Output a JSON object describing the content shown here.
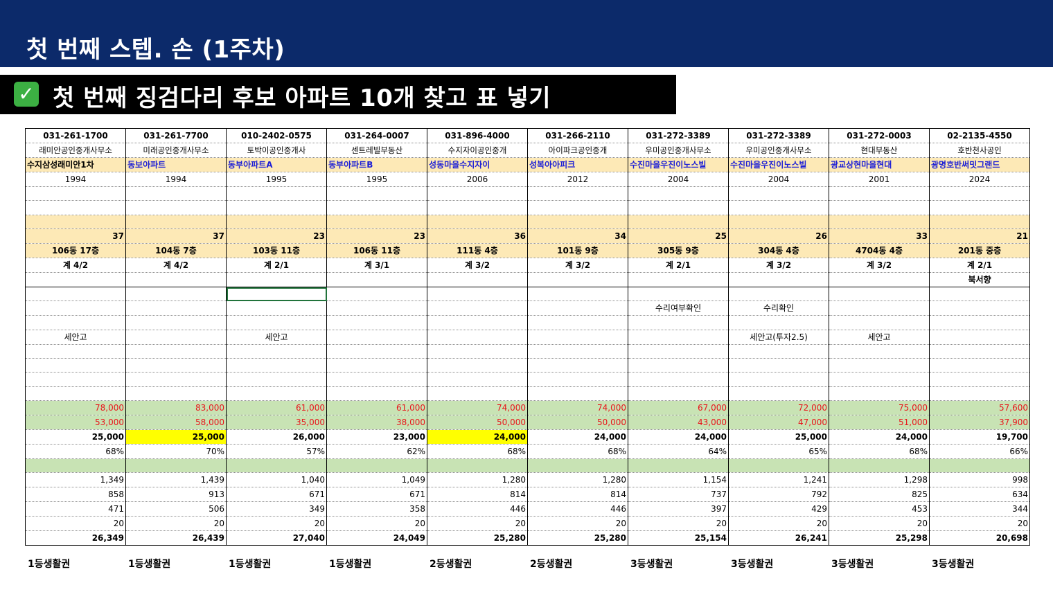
{
  "header": {
    "title": "첫 번째 스텝. 손 (1주차)"
  },
  "subheader": {
    "check": "✓",
    "title": "첫 번째 징검다리 후보 아파트 10개 찾고 표 넣기"
  },
  "columns": [
    {
      "phone": "031-261-1700",
      "office": "래미안공인중개사무소",
      "apt": "수지삼성래미안1차",
      "year": "1994",
      "num": "37",
      "unit": "106동 17층",
      "room": "계 4/2",
      "dir": "",
      "note1": "",
      "note2": "세안고",
      "price1": "78,000",
      "price2": "53,000",
      "gap": "25,000",
      "ratio": "68%",
      "v1": "1,349",
      "v2": "858",
      "v3": "471",
      "v4": "20",
      "total": "26,349",
      "grade": "1등생활권"
    },
    {
      "phone": "031-261-7700",
      "office": "미래공인중개사무소",
      "apt": "동보아파트",
      "year": "1994",
      "num": "37",
      "unit": "104동 7층",
      "room": "계 4/2",
      "dir": "",
      "note1": "",
      "note2": "",
      "price1": "83,000",
      "price2": "58,000",
      "gap": "25,000",
      "ratio": "70%",
      "v1": "1,439",
      "v2": "913",
      "v3": "506",
      "v4": "20",
      "total": "26,439",
      "grade": "1등생활권"
    },
    {
      "phone": "010-2402-0575",
      "office": "토박이공인중개사",
      "apt": "동부아파트A",
      "year": "1995",
      "num": "23",
      "unit": "103동 11층",
      "room": "계 2/1",
      "dir": "",
      "note1": "",
      "note2": "세안고",
      "price1": "61,000",
      "price2": "35,000",
      "gap": "26,000",
      "ratio": "57%",
      "v1": "1,040",
      "v2": "671",
      "v3": "349",
      "v4": "20",
      "total": "27,040",
      "grade": "1등생활권"
    },
    {
      "phone": "031-264-0007",
      "office": "센트레빌부동산",
      "apt": "동부아파트B",
      "year": "1995",
      "num": "23",
      "unit": "106동 11층",
      "room": "계 3/1",
      "dir": "",
      "note1": "",
      "note2": "",
      "price1": "61,000",
      "price2": "38,000",
      "gap": "23,000",
      "ratio": "62%",
      "v1": "1,049",
      "v2": "671",
      "v3": "358",
      "v4": "20",
      "total": "24,049",
      "grade": "1등생활권"
    },
    {
      "phone": "031-896-4000",
      "office": "수지자이공인중개",
      "apt": "성동마을수지자이",
      "year": "2006",
      "num": "36",
      "unit": "111동 4층",
      "room": "계 3/2",
      "dir": "",
      "note1": "",
      "note2": "",
      "price1": "74,000",
      "price2": "50,000",
      "gap": "24,000",
      "ratio": "68%",
      "v1": "1,280",
      "v2": "814",
      "v3": "446",
      "v4": "20",
      "total": "25,280",
      "grade": "2등생활권"
    },
    {
      "phone": "031-266-2110",
      "office": "아이파크공인중개",
      "apt": "성복아아피크",
      "year": "2012",
      "num": "34",
      "unit": "101동 9층",
      "room": "계 3/2",
      "dir": "",
      "note1": "",
      "note2": "",
      "price1": "74,000",
      "price2": "50,000",
      "gap": "24,000",
      "ratio": "68%",
      "v1": "1,280",
      "v2": "814",
      "v3": "446",
      "v4": "20",
      "total": "25,280",
      "grade": "2등생활권"
    },
    {
      "phone": "031-272-3389",
      "office": "우미공인중개사무소",
      "apt": "수진마을우진이노스빌",
      "year": "2004",
      "num": "25",
      "unit": "305동 9층",
      "room": "계 2/1",
      "dir": "",
      "note1": "수리여부확인",
      "note2": "",
      "price1": "67,000",
      "price2": "43,000",
      "gap": "24,000",
      "ratio": "64%",
      "v1": "1,154",
      "v2": "737",
      "v3": "397",
      "v4": "20",
      "total": "25,154",
      "grade": "3등생활권"
    },
    {
      "phone": "031-272-3389",
      "office": "우미공인중개사무소",
      "apt": "수진마을우진이노스빌",
      "year": "2004",
      "num": "26",
      "unit": "304동 4층",
      "room": "계 3/2",
      "dir": "",
      "note1": "수리확인",
      "note2": "세안고(투자2.5)",
      "price1": "72,000",
      "price2": "47,000",
      "gap": "25,000",
      "ratio": "65%",
      "v1": "1,241",
      "v2": "792",
      "v3": "429",
      "v4": "20",
      "total": "26,241",
      "grade": "3등생활권"
    },
    {
      "phone": "031-272-0003",
      "office": "현대부동산",
      "apt": "광교상현마을현대",
      "year": "2001",
      "num": "33",
      "unit": "4704동 4층",
      "room": "계 3/2",
      "dir": "",
      "note1": "",
      "note2": "세안고",
      "price1": "75,000",
      "price2": "51,000",
      "gap": "24,000",
      "ratio": "68%",
      "v1": "1,298",
      "v2": "825",
      "v3": "453",
      "v4": "20",
      "total": "25,298",
      "grade": "3등생활권"
    },
    {
      "phone": "02-2135-4550",
      "office": "호반천사공인",
      "apt": "광명호반써밋그랜드",
      "year": "2024",
      "num": "21",
      "unit": "201동 중층",
      "room": "계 2/1",
      "dir": "북서향",
      "note1": "",
      "note2": "",
      "price1": "57,600",
      "price2": "37,900",
      "gap": "19,700",
      "ratio": "66%",
      "v1": "998",
      "v2": "634",
      "v3": "344",
      "v4": "20",
      "total": "20,698",
      "grade": "3등생활권"
    }
  ]
}
